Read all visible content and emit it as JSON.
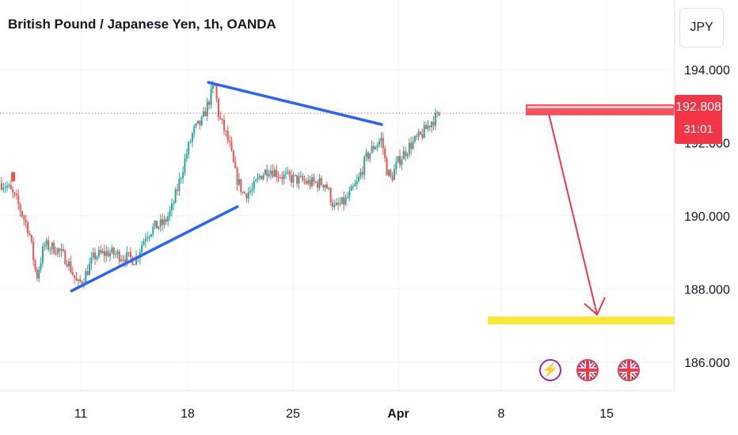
{
  "header": {
    "title": "British Pound / Japanese Yen, 1h, OANDA"
  },
  "currency_button": {
    "label": "JPY"
  },
  "price_badge": {
    "price": "192.808",
    "countdown": "31:01"
  },
  "events": [
    {
      "icon": "lightning-icon"
    },
    {
      "icon": "uk-flag-icon"
    },
    {
      "icon": "uk-flag-icon"
    }
  ],
  "colors": {
    "up": "#26a69a",
    "down": "#ef5350",
    "trendline": "#2962ff",
    "arrow": "#f23645",
    "target_zone": "#fbe73a",
    "last_price": "#f23645"
  },
  "chart_data": {
    "type": "candlestick",
    "title": "British Pound / Japanese Yen, 1h, OANDA",
    "symbol": "GBPJPY",
    "timeframe": "1h",
    "x_ticks": [
      "11",
      "18",
      "25",
      "Apr",
      "8",
      "15"
    ],
    "y_ticks": [
      "194.000",
      "190.000",
      "188.000",
      "186.000"
    ],
    "ylim": [
      185.3,
      195.0
    ],
    "last_price": 192.808,
    "countdown": "31:01",
    "grid": true,
    "price_path": [
      [
        0,
        190.9
      ],
      [
        0.4,
        190.8
      ],
      [
        1.0,
        190.4
      ],
      [
        1.8,
        189.6
      ],
      [
        2.3,
        188.3
      ],
      [
        2.8,
        189.2
      ],
      [
        3.6,
        189.1
      ],
      [
        4.3,
        188.8
      ],
      [
        5.0,
        188.1
      ],
      [
        5.4,
        188.3
      ],
      [
        6.1,
        188.9
      ],
      [
        7.0,
        189.0
      ],
      [
        8.0,
        188.9
      ],
      [
        8.8,
        188.8
      ],
      [
        9.5,
        189.5
      ],
      [
        10.1,
        189.7
      ],
      [
        10.7,
        189.8
      ],
      [
        11.2,
        190.2
      ],
      [
        11.6,
        190.8
      ],
      [
        12.1,
        191.6
      ],
      [
        12.6,
        192.3
      ],
      [
        13.2,
        192.6
      ],
      [
        13.6,
        193.1
      ],
      [
        14.0,
        193.6
      ],
      [
        14.3,
        192.7
      ],
      [
        14.7,
        192.3
      ],
      [
        15.0,
        191.9
      ],
      [
        15.4,
        191.1
      ],
      [
        15.9,
        190.6
      ],
      [
        16.5,
        190.7
      ],
      [
        17.0,
        191.1
      ],
      [
        17.6,
        191.3
      ],
      [
        18.4,
        191.1
      ],
      [
        19.3,
        191.0
      ],
      [
        20.3,
        190.9
      ],
      [
        21.3,
        190.9
      ],
      [
        21.9,
        190.2
      ],
      [
        22.6,
        190.4
      ],
      [
        23.4,
        190.9
      ],
      [
        24.0,
        191.6
      ],
      [
        24.5,
        191.9
      ],
      [
        25.0,
        192.1
      ],
      [
        25.3,
        191.3
      ],
      [
        25.6,
        191.0
      ],
      [
        26.1,
        191.5
      ],
      [
        26.8,
        191.9
      ],
      [
        27.6,
        192.2
      ],
      [
        28.3,
        192.6
      ],
      [
        28.9,
        192.8
      ]
    ],
    "annotations": {
      "resistance_trendline": [
        [
          13.6,
          193.65
        ],
        [
          25.0,
          192.5
        ]
      ],
      "support_trendline": [
        [
          4.6,
          187.95
        ],
        [
          15.5,
          190.25
        ]
      ],
      "entry_zone": {
        "x_range": [
          28.0,
          36.0
        ],
        "price_range": [
          192.75,
          193.05
        ]
      },
      "projection_arrow": [
        [
          29.0,
          192.8
        ],
        [
          32.0,
          187.3
        ]
      ],
      "target_zone": {
        "x_range": [
          26.0,
          36.0
        ],
        "price_range": [
          187.05,
          187.25
        ]
      }
    }
  }
}
